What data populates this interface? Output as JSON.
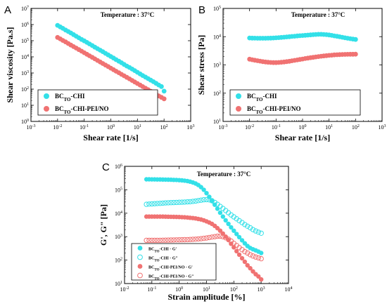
{
  "chart_data": [
    {
      "panel": "A",
      "type": "scatter",
      "xlabel": "Shear rate [1/s]",
      "ylabel": "Shear viscosity [Pa.s]",
      "xscale": "log",
      "yscale": "log",
      "xlim": [
        0.001,
        1000
      ],
      "ylim": [
        1,
        10000000
      ],
      "annotation": "Temperature : 37°C",
      "legend_position": "bottom-left",
      "series": [
        {
          "name": "BCTO-CHI",
          "color": "#33e0e8",
          "marker": "filled-circle",
          "x": [
            0.01,
            0.0126,
            0.0158,
            0.02,
            0.0251,
            0.0316,
            0.0398,
            0.0501,
            0.0631,
            0.0794,
            0.1,
            0.126,
            0.158,
            0.2,
            0.251,
            0.316,
            0.398,
            0.501,
            0.631,
            0.794,
            1,
            1.26,
            1.58,
            2,
            2.51,
            3.16,
            3.98,
            5.01,
            6.31,
            7.94,
            10,
            12.6,
            15.8,
            20,
            25.1,
            31.6,
            39.8,
            50.1,
            63.1,
            79.4,
            100
          ],
          "y": [
            900000,
            720000,
            580000,
            460000,
            370000,
            300000,
            240000,
            190000,
            150000,
            120000,
            98000,
            79000,
            63000,
            50000,
            40000,
            32000,
            26000,
            21000,
            16500,
            13200,
            10500,
            8400,
            6700,
            5400,
            4300,
            3400,
            2700,
            2200,
            1750,
            1400,
            1100,
            880,
            700,
            560,
            450,
            360,
            290,
            230,
            180,
            145,
            75
          ]
        },
        {
          "name": "BCTO-CHI-PEI/NO",
          "color": "#f07272",
          "marker": "filled-circle",
          "x": [
            0.01,
            0.0126,
            0.0158,
            0.02,
            0.0251,
            0.0316,
            0.0398,
            0.0501,
            0.0631,
            0.0794,
            0.1,
            0.126,
            0.158,
            0.2,
            0.251,
            0.316,
            0.398,
            0.501,
            0.631,
            0.794,
            1,
            1.26,
            1.58,
            2,
            2.51,
            3.16,
            3.98,
            5.01,
            6.31,
            7.94,
            10,
            12.6,
            15.8,
            20,
            25.1,
            31.6,
            39.8,
            50.1,
            63.1,
            79.4,
            100
          ],
          "y": [
            160000,
            130000,
            104000,
            84000,
            67000,
            54000,
            43000,
            35000,
            28000,
            22500,
            18000,
            14500,
            11600,
            9300,
            7500,
            6000,
            4800,
            3850,
            3100,
            2500,
            2000,
            1600,
            1290,
            1040,
            830,
            670,
            540,
            430,
            345,
            277,
            222,
            178,
            143,
            115,
            92,
            74,
            60,
            48,
            38,
            31,
            25
          ]
        }
      ]
    },
    {
      "panel": "B",
      "type": "scatter",
      "xlabel": "Shear rate [1/s]",
      "ylabel": "Shear stress [Pa]",
      "xscale": "log",
      "yscale": "log",
      "xlim": [
        0.001,
        1000
      ],
      "ylim": [
        10,
        100000
      ],
      "annotation": "Temperature : 37°C",
      "legend_position": "bottom-left",
      "series": [
        {
          "name": "BCTO-CHI",
          "color": "#33e0e8",
          "marker": "filled-circle",
          "x": [
            0.01,
            0.0126,
            0.0158,
            0.02,
            0.0251,
            0.0316,
            0.0398,
            0.0501,
            0.0631,
            0.0794,
            0.1,
            0.126,
            0.158,
            0.2,
            0.251,
            0.316,
            0.398,
            0.501,
            0.631,
            0.794,
            1,
            1.26,
            1.58,
            2,
            2.51,
            3.16,
            3.98,
            5.01,
            6.31,
            7.94,
            10,
            12.6,
            15.8,
            20,
            25.1,
            31.6,
            39.8,
            50.1,
            63.1,
            79.4,
            100
          ],
          "y": [
            9000,
            8900,
            8850,
            8800,
            8800,
            8800,
            8800,
            8850,
            8900,
            9000,
            9100,
            9250,
            9400,
            9600,
            9800,
            10000,
            10200,
            10400,
            10600,
            10800,
            11000,
            11200,
            11400,
            11600,
            11800,
            12000,
            12100,
            12100,
            12000,
            11800,
            11500,
            11100,
            10700,
            10300,
            9900,
            9500,
            9100,
            8800,
            8500,
            8200,
            8000
          ]
        },
        {
          "name": "BCTO-CHI-PEI/NO",
          "color": "#f07272",
          "marker": "filled-circle",
          "x": [
            0.01,
            0.0126,
            0.0158,
            0.02,
            0.0251,
            0.0316,
            0.0398,
            0.0501,
            0.0631,
            0.0794,
            0.1,
            0.126,
            0.158,
            0.2,
            0.251,
            0.316,
            0.398,
            0.501,
            0.631,
            0.794,
            1,
            1.26,
            1.58,
            2,
            2.51,
            3.16,
            3.98,
            5.01,
            6.31,
            7.94,
            10,
            12.6,
            15.8,
            20,
            25.1,
            31.6,
            39.8,
            50.1,
            63.1,
            79.4,
            100
          ],
          "y": [
            1600,
            1530,
            1470,
            1410,
            1360,
            1310,
            1270,
            1240,
            1220,
            1210,
            1210,
            1220,
            1240,
            1270,
            1310,
            1350,
            1400,
            1450,
            1500,
            1560,
            1620,
            1680,
            1740,
            1800,
            1860,
            1920,
            1980,
            2030,
            2080,
            2130,
            2180,
            2220,
            2260,
            2290,
            2320,
            2340,
            2360,
            2370,
            2380,
            2390,
            2400
          ]
        }
      ]
    },
    {
      "panel": "C",
      "type": "scatter",
      "xlabel": "Strain amplitude [%]",
      "ylabel": "G', G\" [Pa]",
      "xscale": "log",
      "yscale": "log",
      "xlim": [
        0.01,
        10000
      ],
      "ylim": [
        10,
        1000000
      ],
      "annotation": "Temperature : 37°C",
      "legend_position": "bottom-left",
      "series": [
        {
          "name": "BCTO-CHI - G'",
          "color": "#33e0e8",
          "marker": "filled-circle",
          "x": [
            0.0631,
            0.0794,
            0.1,
            0.126,
            0.158,
            0.2,
            0.251,
            0.316,
            0.398,
            0.501,
            0.631,
            0.794,
            1,
            1.26,
            1.58,
            2,
            2.51,
            3.16,
            3.98,
            5.01,
            6.31,
            7.94,
            10,
            12.6,
            15.8,
            20,
            25.1,
            31.6,
            39.8,
            50.1,
            63.1,
            79.4,
            100,
            126,
            158,
            200,
            251,
            316,
            398,
            501,
            631,
            794,
            1000
          ],
          "y": [
            280000,
            279000,
            278000,
            277000,
            276000,
            275000,
            274000,
            272000,
            270000,
            268000,
            265000,
            262000,
            258000,
            252000,
            245000,
            235000,
            222000,
            205000,
            185000,
            160000,
            130000,
            100000,
            72000,
            50000,
            34000,
            23000,
            15500,
            10500,
            7200,
            5000,
            3500,
            2500,
            1800,
            1300,
            950,
            700,
            520,
            400,
            330,
            290,
            260,
            230,
            200
          ]
        },
        {
          "name": "BCTO-CHI - G\"",
          "color": "#33e0e8",
          "marker": "open-circle",
          "x": [
            0.0631,
            0.0794,
            0.1,
            0.126,
            0.158,
            0.2,
            0.251,
            0.316,
            0.398,
            0.501,
            0.631,
            0.794,
            1,
            1.26,
            1.58,
            2,
            2.51,
            3.16,
            3.98,
            5.01,
            6.31,
            7.94,
            10,
            12.6,
            15.8,
            20,
            25.1,
            31.6,
            39.8,
            50.1,
            63.1,
            79.4,
            100,
            126,
            158,
            200,
            251,
            316,
            398,
            501,
            631,
            794,
            1000
          ],
          "y": [
            24000,
            24500,
            25000,
            25500,
            26000,
            26500,
            27000,
            27500,
            28000,
            28300,
            28600,
            29000,
            29300,
            29600,
            30000,
            30500,
            31000,
            32000,
            33000,
            34500,
            36000,
            37500,
            38000,
            37000,
            34000,
            29000,
            24000,
            19500,
            16000,
            13000,
            10500,
            8500,
            7000,
            5800,
            4800,
            4000,
            3300,
            2800,
            2400,
            2000,
            1750,
            1550,
            1400
          ]
        },
        {
          "name": "BCTO-CHI-PEI/NO - G'",
          "color": "#f07272",
          "marker": "filled-circle",
          "x": [
            0.0631,
            0.0794,
            0.1,
            0.126,
            0.158,
            0.2,
            0.251,
            0.316,
            0.398,
            0.501,
            0.631,
            0.794,
            1,
            1.26,
            1.58,
            2,
            2.51,
            3.16,
            3.98,
            5.01,
            6.31,
            7.94,
            10,
            12.6,
            15.8,
            20,
            25.1,
            31.6,
            39.8,
            50.1,
            63.1,
            79.4,
            100,
            126,
            158,
            200,
            251,
            316,
            398,
            501,
            631,
            794,
            1000
          ],
          "y": [
            7200,
            7200,
            7200,
            7200,
            7200,
            7200,
            7200,
            7150,
            7100,
            7050,
            7000,
            6950,
            6900,
            6800,
            6700,
            6550,
            6400,
            6200,
            6000,
            5700,
            5400,
            5000,
            4500,
            4000,
            3500,
            2900,
            2300,
            1800,
            1350,
            1000,
            720,
            500,
            350,
            240,
            170,
            120,
            85,
            60,
            45,
            33,
            25,
            20,
            15
          ]
        },
        {
          "name": "BCTO-CHI-PEI/NO - G\"",
          "color": "#f07272",
          "marker": "open-circle",
          "x": [
            0.0631,
            0.0794,
            0.1,
            0.126,
            0.158,
            0.2,
            0.251,
            0.316,
            0.398,
            0.501,
            0.631,
            0.794,
            1,
            1.26,
            1.58,
            2,
            2.51,
            3.16,
            3.98,
            5.01,
            6.31,
            7.94,
            10,
            12.6,
            15.8,
            20,
            25.1,
            31.6,
            39.8,
            50.1,
            63.1,
            79.4,
            100,
            126,
            158,
            200,
            251,
            316,
            398,
            501,
            631,
            794,
            1000
          ],
          "y": [
            700,
            700,
            700,
            700,
            700,
            700,
            705,
            710,
            715,
            720,
            725,
            730,
            735,
            740,
            745,
            750,
            760,
            770,
            780,
            800,
            820,
            850,
            880,
            920,
            960,
            1000,
            1040,
            1050,
            1000,
            900,
            780,
            650,
            520,
            420,
            340,
            280,
            230,
            200,
            170,
            150,
            135,
            125,
            115
          ]
        }
      ]
    }
  ]
}
